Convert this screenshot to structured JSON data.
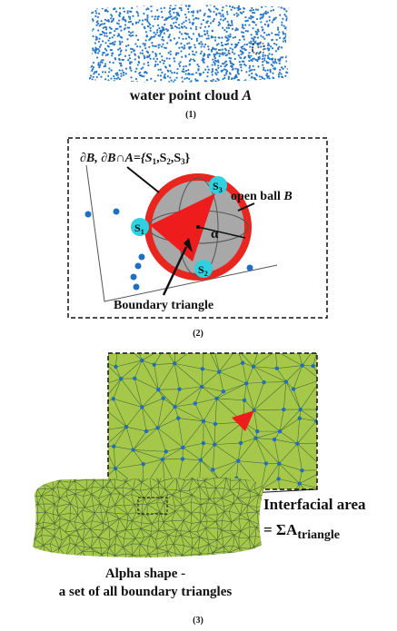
{
  "panel1": {
    "caption": [
      "water point cloud ",
      "A"
    ],
    "number": "(1)"
  },
  "panel2": {
    "boundary_label": [
      "∂B, ∂B∩A={S",
      "1",
      ",S",
      "2",
      ",S",
      "3",
      "}"
    ],
    "s_labels": [
      [
        "S",
        "1"
      ],
      [
        "S",
        "2"
      ],
      [
        "S",
        "3"
      ]
    ],
    "open_ball_label": [
      "open ball ",
      "B"
    ],
    "alpha": "α",
    "triangle_label": "Boundary triangle",
    "number": "(2)"
  },
  "panel3": {
    "area_label": [
      "Interfacial area",
      "= ΣA",
      "triangle"
    ],
    "shape_label": [
      "Alpha shape -",
      "a set of all boundary triangles"
    ],
    "number": "(3)"
  }
}
